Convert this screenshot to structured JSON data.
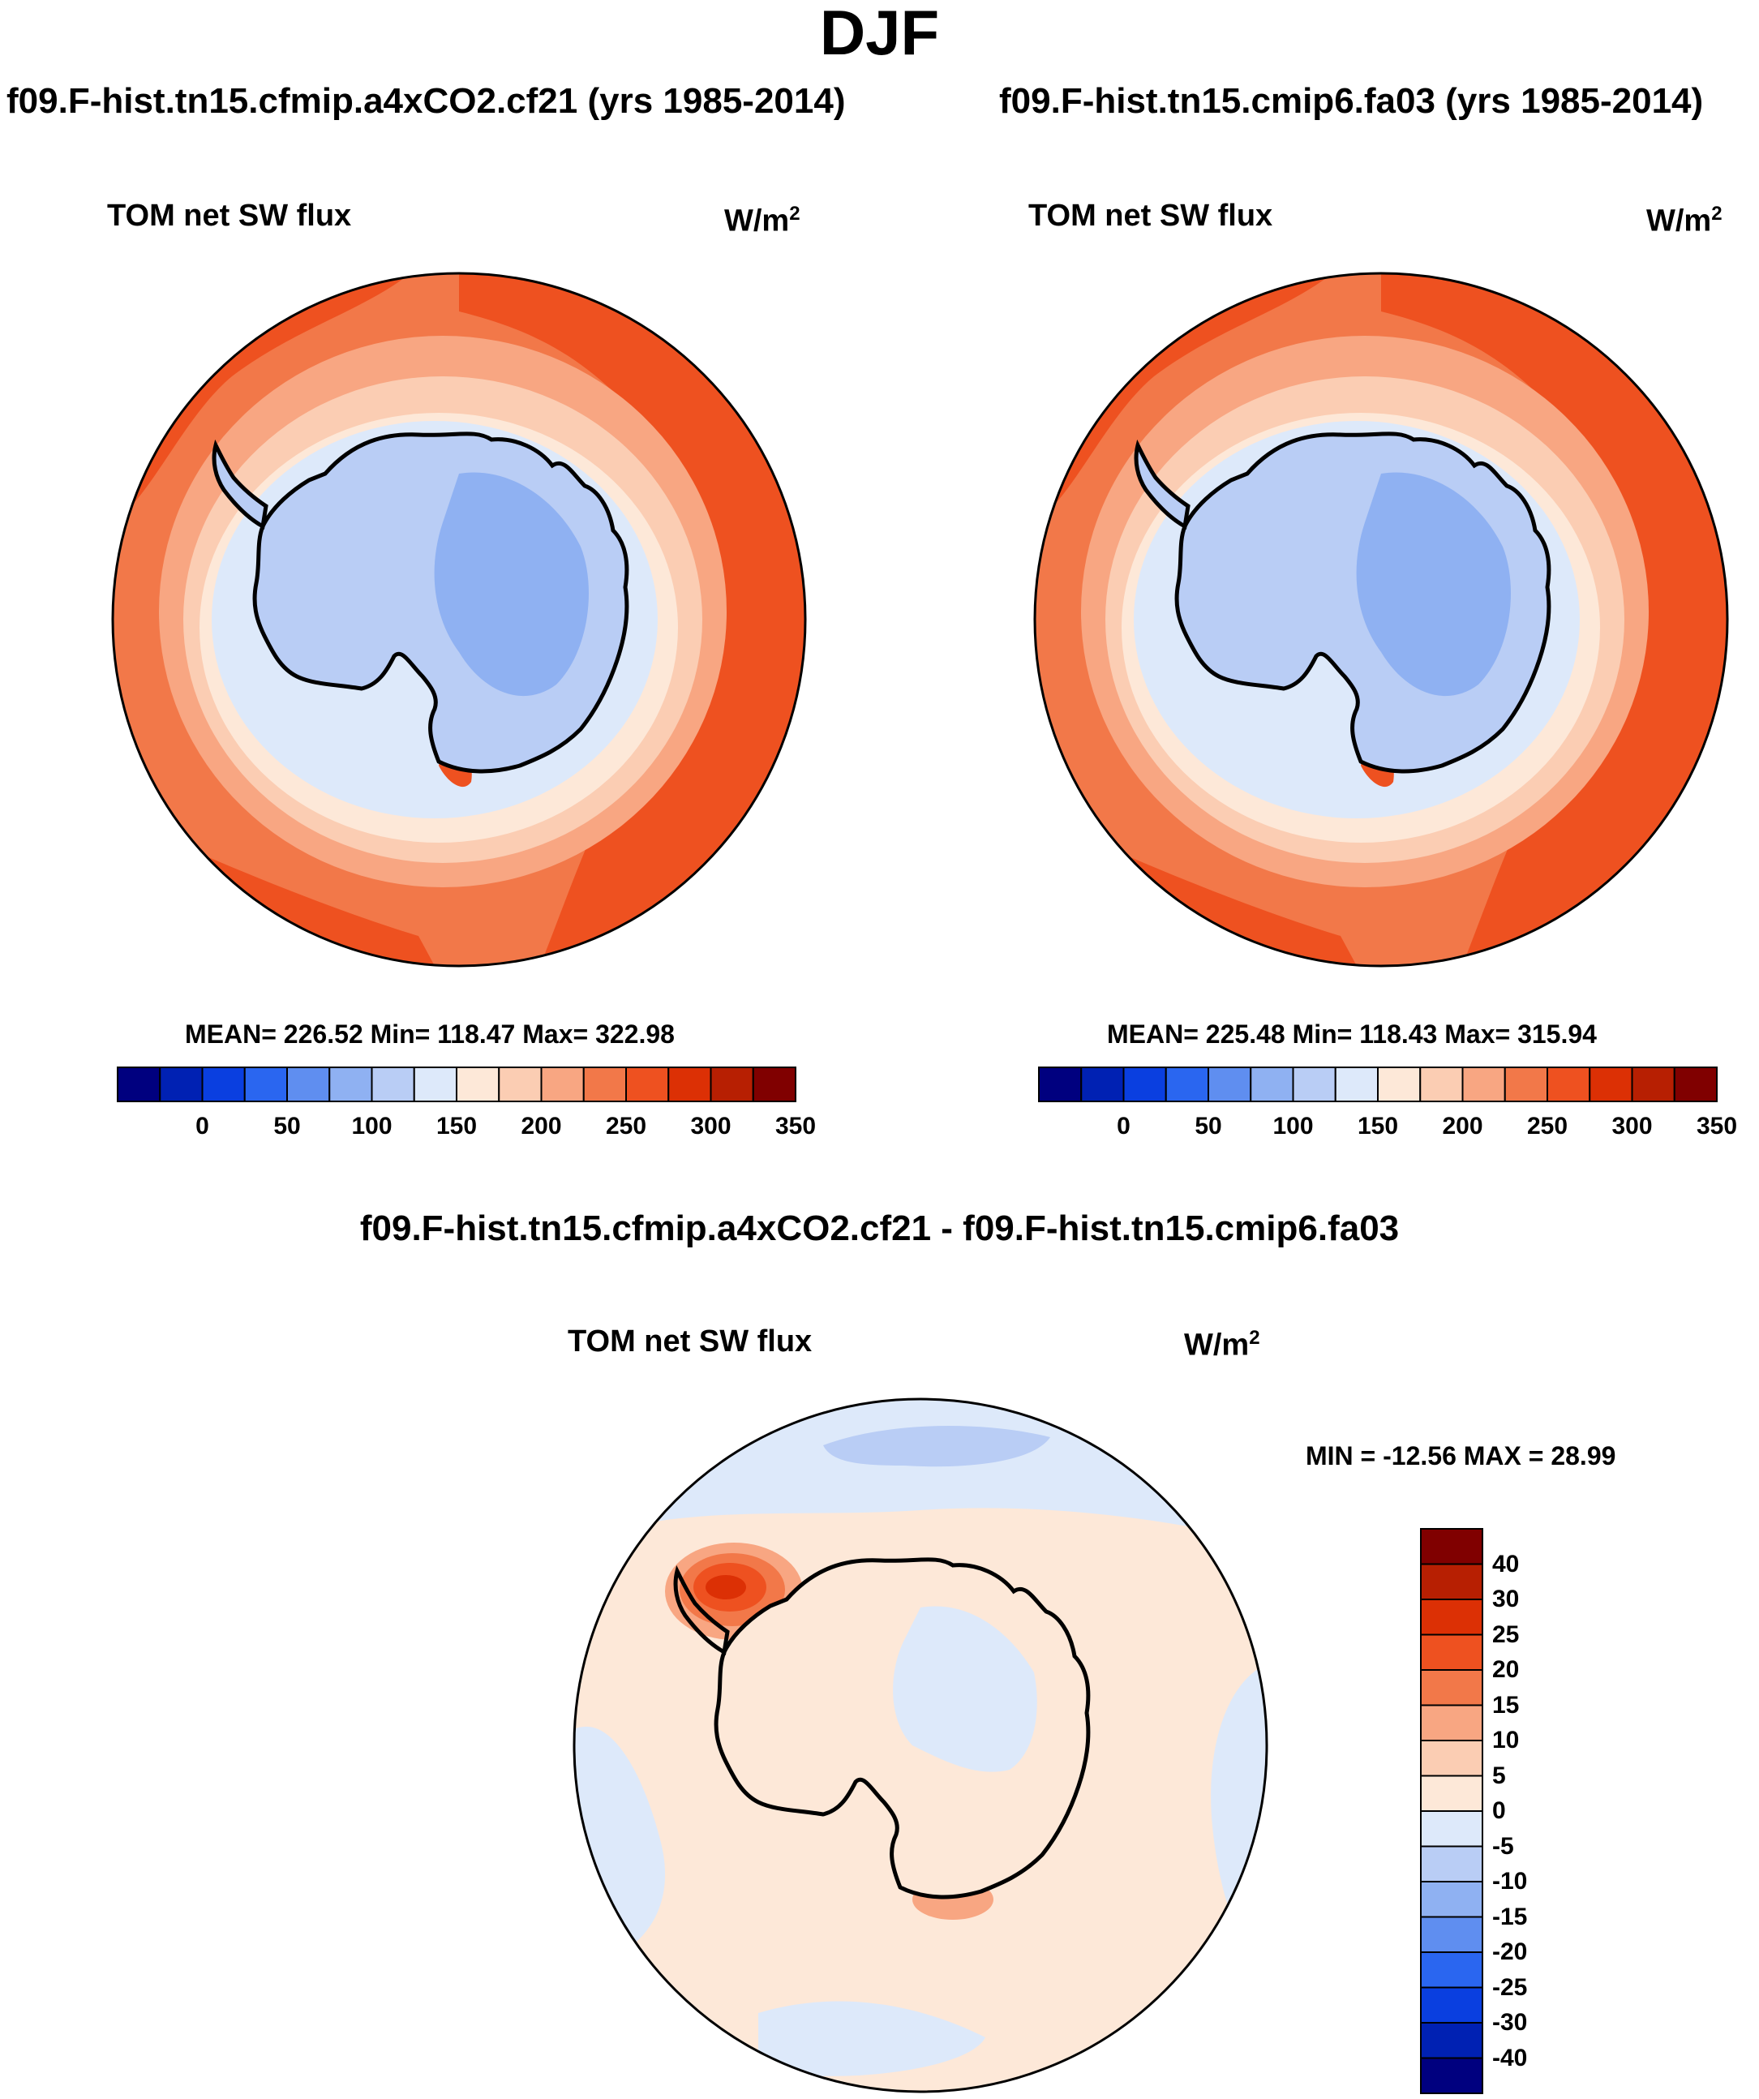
{
  "figure": {
    "title": "DJF",
    "diff_title": "f09.F-hist.tn15.cfmip.a4xCO2.cf21 - f09.F-hist.tn15.cmip6.fa03"
  },
  "panels": [
    {
      "case_title": "f09.F-hist.tn15.cfmip.a4xCO2.cf21 (yrs 1985-2014)",
      "variable": "TOM net SW flux",
      "units_base": "W/m",
      "units_exp": "2",
      "stats": "MEAN= 226.52  Min= 118.47  Max= 322.98"
    },
    {
      "case_title": "f09.F-hist.tn15.cmip6.fa03 (yrs 1985-2014)",
      "variable": "TOM net SW flux",
      "units_base": "W/m",
      "units_exp": "2",
      "stats": "MEAN= 225.48  Min= 118.43  Max= 315.94"
    }
  ],
  "diff_panel": {
    "variable": "TOM net SW flux",
    "units_base": "W/m",
    "units_exp": "2",
    "stats": "MIN = -12.56 MAX =  28.99"
  },
  "colorbar_abs": {
    "colors": [
      "#00007f",
      "#0021b3",
      "#0a3fe0",
      "#2a66f0",
      "#5f8ef0",
      "#8fb1f2",
      "#b9cdf5",
      "#dde9fa",
      "#fde8d8",
      "#fbcdb3",
      "#f8a682",
      "#f27849",
      "#ee5120",
      "#dc3005",
      "#b71f02",
      "#800000"
    ],
    "tick_labels": [
      "0",
      "50",
      "100",
      "150",
      "200",
      "250",
      "300",
      "350"
    ]
  },
  "colorbar_diff": {
    "colors_top_to_bottom": [
      "#800000",
      "#b71f02",
      "#dc3005",
      "#ee5120",
      "#f27849",
      "#f8a682",
      "#fbcdb3",
      "#fde8d8",
      "#dde9fa",
      "#b9cdf5",
      "#8fb1f2",
      "#5f8ef0",
      "#2a66f0",
      "#0a3fe0",
      "#0021b3",
      "#00007f"
    ],
    "tick_labels": [
      "40",
      "30",
      "25",
      "20",
      "15",
      "10",
      "5",
      "0",
      "-5",
      "-10",
      "-15",
      "-20",
      "-25",
      "-30",
      "-40"
    ]
  },
  "map_colors": {
    "ocean_outer": "#ee5120",
    "ocean_mid": "#f27849",
    "ring_1": "#f8a682",
    "ring_2": "#fbcdb3",
    "ring_3": "#fde8d8",
    "ring_4": "#dde9fa",
    "ice_sheet": "#b9cdf5",
    "ice_interior": "#8fb1f2",
    "diff_background": "#fde8d8",
    "diff_negative": "#dde9fa",
    "diff_negative_strong": "#b9cdf5",
    "diff_hot_1": "#f8a682",
    "diff_hot_2": "#f27849",
    "diff_hot_3": "#ee5120",
    "diff_hot_4": "#dc3005"
  }
}
